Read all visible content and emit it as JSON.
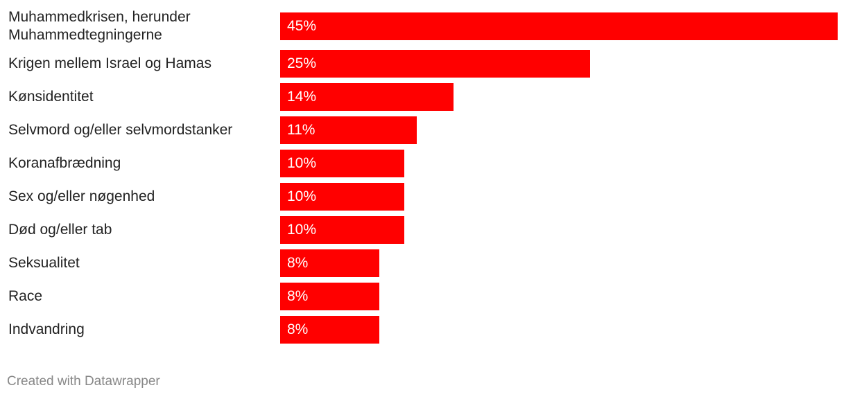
{
  "chart_data": {
    "type": "bar",
    "orientation": "horizontal",
    "color": "#ff0000",
    "categories": [
      "Muhammedkrisen, herunder Muhammedtegningerne",
      "Krigen mellem Israel og Hamas",
      "Kønsidentitet",
      "Selvmord og/eller selvmordstanker",
      "Koranafbrædning",
      "Sex og/eller nøgenhed",
      "Død og/eller tab",
      "Seksualitet",
      "Race",
      "Indvandring"
    ],
    "values": [
      45,
      25,
      14,
      11,
      10,
      10,
      10,
      8,
      8,
      8
    ],
    "value_labels": [
      "45%",
      "25%",
      "14%",
      "11%",
      "10%",
      "10%",
      "10%",
      "8%",
      "8%",
      "8%"
    ],
    "credit": "Created with Datawrapper"
  }
}
